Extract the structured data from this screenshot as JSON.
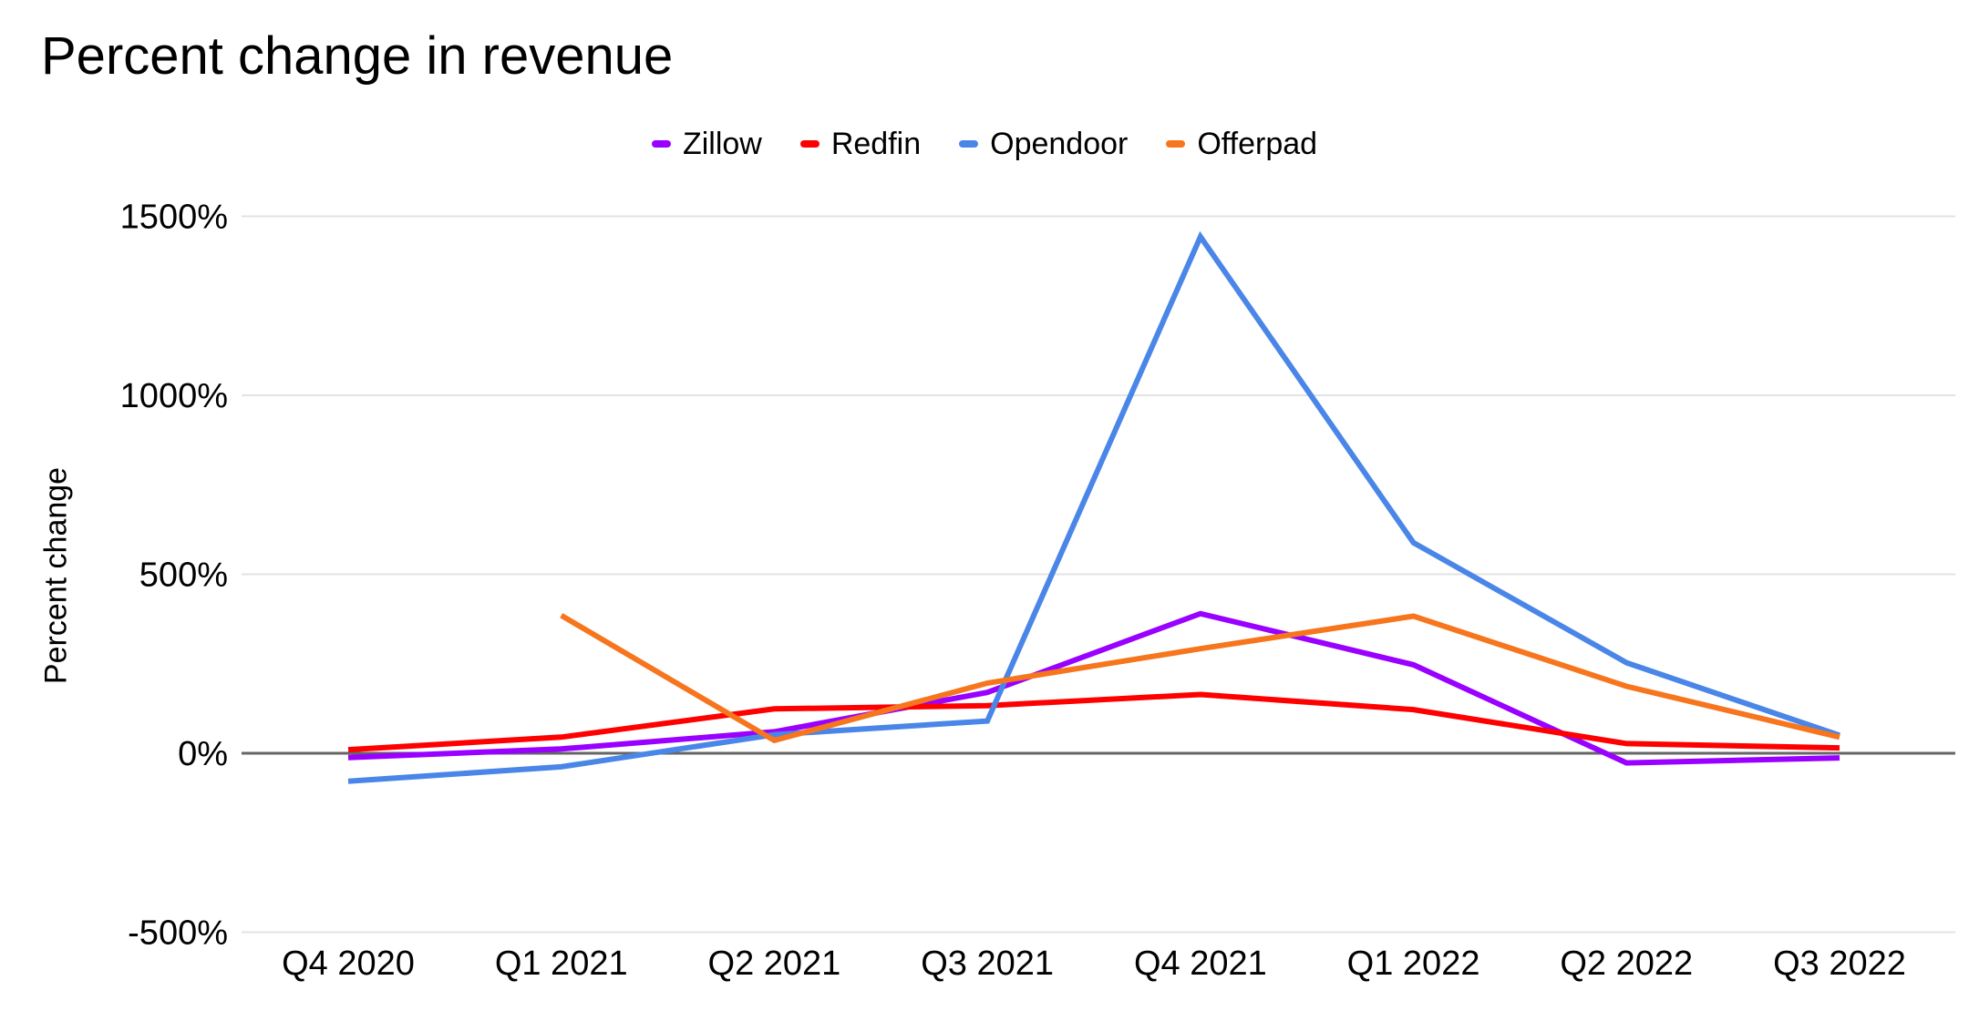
{
  "chart_data": {
    "type": "line",
    "title": "Percent change in revenue",
    "xlabel": "",
    "ylabel": "Percent change",
    "categories": [
      "Q4 2020",
      "Q1 2021",
      "Q2 2021",
      "Q3 2021",
      "Q4 2021",
      "Q1 2022",
      "Q2 2022",
      "Q3 2022"
    ],
    "series": [
      {
        "name": "Zillow",
        "color": "#9900ff",
        "values": [
          -12,
          12,
          60,
          170,
          390,
          247,
          -27,
          -13
        ]
      },
      {
        "name": "Redfin",
        "color": "#ff0000",
        "values": [
          10,
          45,
          124,
          133,
          164,
          122,
          27,
          15
        ]
      },
      {
        "name": "Opendoor",
        "color": "#4a86e8",
        "values": [
          -78,
          -38,
          52,
          90,
          1443,
          588,
          253,
          50
        ]
      },
      {
        "name": "Offerpad",
        "color": "#f6751d",
        "values": [
          null,
          385,
          36,
          196,
          292,
          383,
          187,
          45
        ]
      }
    ],
    "yticks": [
      {
        "value": 1500,
        "label": "1500%"
      },
      {
        "value": 1000,
        "label": "1000%"
      },
      {
        "value": 500,
        "label": "500%"
      },
      {
        "value": 0,
        "label": "0%"
      },
      {
        "value": -500,
        "label": "-500%"
      }
    ],
    "ylim": [
      -500,
      1500
    ],
    "legend_position": "top",
    "grid": true,
    "grid_color": "#e3e3e3",
    "zero_axis_color": "#666666",
    "text_color": "#000000",
    "background_color": "#ffffff"
  }
}
